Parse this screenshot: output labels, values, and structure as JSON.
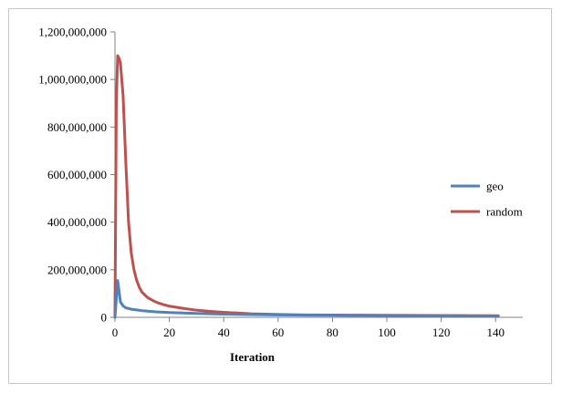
{
  "chart_data": {
    "type": "line",
    "title": "",
    "xlabel": "Iteration",
    "ylabel": "",
    "xlim": [
      0,
      150
    ],
    "ylim": [
      0,
      1200000000
    ],
    "x_ticks": [
      0,
      20,
      40,
      60,
      80,
      100,
      120,
      140
    ],
    "y_ticks": [
      0,
      200000000,
      400000000,
      600000000,
      800000000,
      1000000000,
      1200000000
    ],
    "x_tick_labels": [
      "0",
      "20",
      "40",
      "60",
      "80",
      "100",
      "120",
      "140"
    ],
    "y_tick_labels": [
      "0",
      "200,000,000",
      "400,000,000",
      "600,000,000",
      "800,000,000",
      "1,000,000,000",
      "1,200,000,000"
    ],
    "grid": false,
    "legend_position": "right",
    "series": [
      {
        "name": "geo",
        "color": "#4f81bd",
        "x": [
          0,
          1,
          2,
          3,
          4,
          5,
          6,
          8,
          10,
          12,
          15,
          20,
          25,
          30,
          35,
          40,
          50,
          60,
          70,
          80,
          90,
          100,
          110,
          120,
          130,
          141
        ],
        "y": [
          0,
          155000000,
          65000000,
          48000000,
          40000000,
          37000000,
          34000000,
          31000000,
          28000000,
          26000000,
          23000000,
          20000000,
          18000000,
          16500000,
          15000000,
          13500000,
          11500000,
          10000000,
          9000000,
          8500000,
          8000000,
          7500000,
          7000000,
          6500000,
          6000000,
          5500000
        ]
      },
      {
        "name": "random",
        "color": "#c0504d",
        "x": [
          0,
          0.5,
          1,
          1.5,
          2,
          3,
          4,
          5,
          6,
          7,
          8,
          9,
          10,
          12,
          14,
          16,
          18,
          20,
          25,
          30,
          35,
          40,
          45,
          50,
          60,
          70,
          80,
          90,
          100,
          110,
          120,
          130,
          141
        ],
        "y": [
          0,
          900000000,
          1100000000,
          1090000000,
          1070000000,
          930000000,
          650000000,
          400000000,
          270000000,
          200000000,
          155000000,
          125000000,
          105000000,
          83000000,
          70000000,
          60000000,
          53000000,
          47000000,
          38000000,
          30000000,
          25000000,
          21000000,
          18000000,
          15000000,
          12000000,
          10000000,
          9500000,
          9000000,
          8500000,
          8000000,
          7500000,
          7000000,
          6500000
        ]
      }
    ]
  }
}
